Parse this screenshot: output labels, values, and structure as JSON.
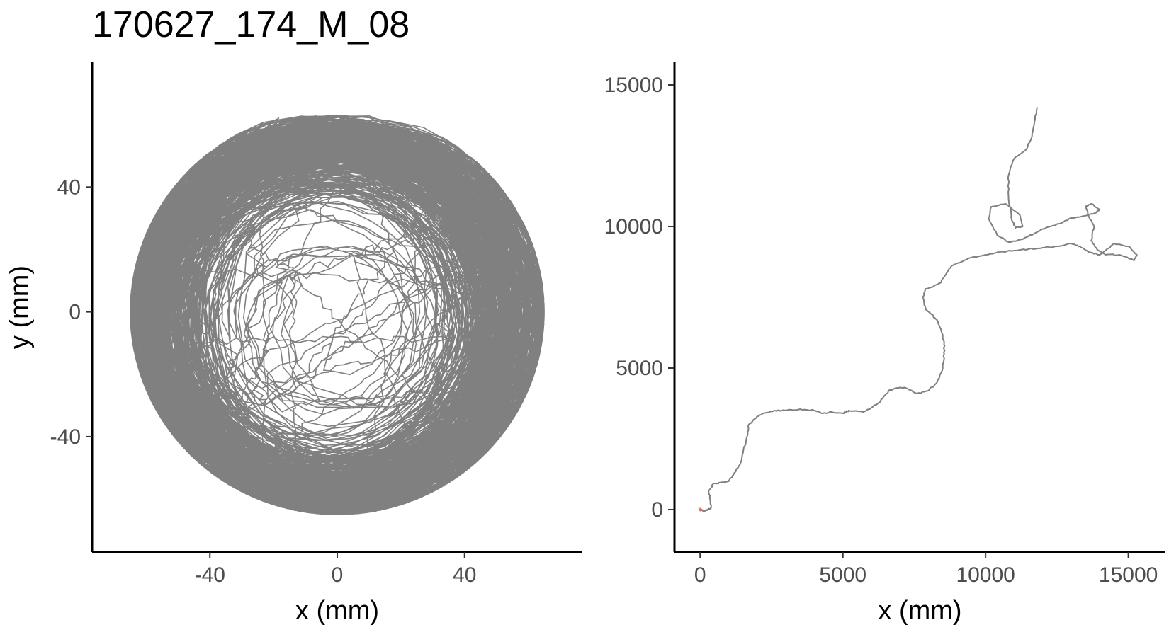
{
  "figure_title": "170627_174_M_08",
  "colors": {
    "track": "#808080",
    "start_marker": "#e57373",
    "axis": "#000000",
    "tick_text": "#4d4d4d"
  },
  "chart_data": [
    {
      "type": "line",
      "panel": "left",
      "title": "170627_174_M_08",
      "xlabel": "x (mm)",
      "ylabel": "y (mm)",
      "xlim": [
        -77,
        77
      ],
      "ylim": [
        -77,
        80
      ],
      "xticks": [
        -40,
        0,
        40
      ],
      "yticks": [
        -40,
        0,
        40
      ],
      "xtick_labels": [
        "-40",
        "0",
        "40"
      ],
      "ytick_labels": [
        "-40",
        "0",
        "40"
      ],
      "grid": false,
      "legend": "none",
      "description_of_series": "dense looping trajectory inside a circular arena of radius ~65 mm",
      "series": [
        {
          "radius_range_mm": [
            5,
            65
          ],
          "center": [
            0,
            0
          ],
          "loops": 420
        }
      ]
    },
    {
      "type": "line",
      "panel": "right",
      "xlabel": "x (mm)",
      "ylabel": "",
      "xlim": [
        -900,
        16300
      ],
      "ylim": [
        -1500,
        15800
      ],
      "xticks": [
        0,
        5000,
        10000,
        15000
      ],
      "yticks": [
        0,
        5000,
        10000,
        15000
      ],
      "xtick_labels": [
        "0",
        "5000",
        "10000",
        "15000"
      ],
      "ytick_labels": [
        "0",
        "5000",
        "10000",
        "15000"
      ],
      "grid": false,
      "legend": "none",
      "series": [
        {
          "x": [
            0,
            150,
            250,
            380,
            350,
            300,
            450,
            700,
            1000,
            1200,
            1400,
            1500,
            1650,
            1700,
            1900,
            2200,
            2600,
            3000,
            3500,
            4000,
            4300,
            4600,
            5000,
            5200,
            5700,
            6000,
            6300,
            6600,
            6900,
            7200,
            7600,
            8000,
            8300,
            8500,
            8550,
            8550,
            8450,
            8300,
            8100,
            7900,
            7800,
            7900,
            8200,
            8400,
            8600,
            8800,
            9000,
            9500,
            10000,
            10500,
            11000,
            11500,
            12000,
            12500,
            13000,
            13300,
            13600,
            14000,
            14500,
            15000,
            15300,
            15200,
            14700,
            14200,
            13900,
            13700,
            13800,
            13600,
            13500,
            13700,
            14000,
            13900,
            13600,
            13000,
            12600,
            12100,
            11800,
            11300,
            10800,
            10400,
            10100,
            10200,
            10700,
            11200,
            11300,
            11050,
            10900,
            10800,
            10800,
            11000,
            11400,
            11600,
            11700,
            11800
          ],
          "y": [
            0,
            -50,
            -20,
            50,
            350,
            650,
            900,
            950,
            1000,
            1300,
            1600,
            2000,
            2600,
            3000,
            3200,
            3400,
            3500,
            3500,
            3550,
            3500,
            3400,
            3450,
            3400,
            3500,
            3450,
            3600,
            3800,
            4200,
            4300,
            4300,
            4100,
            4200,
            4500,
            5000,
            5500,
            5900,
            6300,
            6700,
            6900,
            7100,
            7500,
            7800,
            7900,
            8000,
            8300,
            8600,
            8700,
            8900,
            9000,
            9100,
            9150,
            9200,
            9250,
            9300,
            9400,
            9300,
            9100,
            9000,
            9400,
            9300,
            9000,
            8800,
            9000,
            9000,
            9200,
            9500,
            10000,
            10400,
            10700,
            10800,
            10600,
            10500,
            10400,
            10300,
            10100,
            9950,
            9800,
            9550,
            9450,
            9700,
            10300,
            10700,
            10800,
            10400,
            10000,
            9950,
            10300,
            11100,
            11800,
            12400,
            12700,
            13100,
            13600,
            14200
          ]
        }
      ]
    }
  ]
}
